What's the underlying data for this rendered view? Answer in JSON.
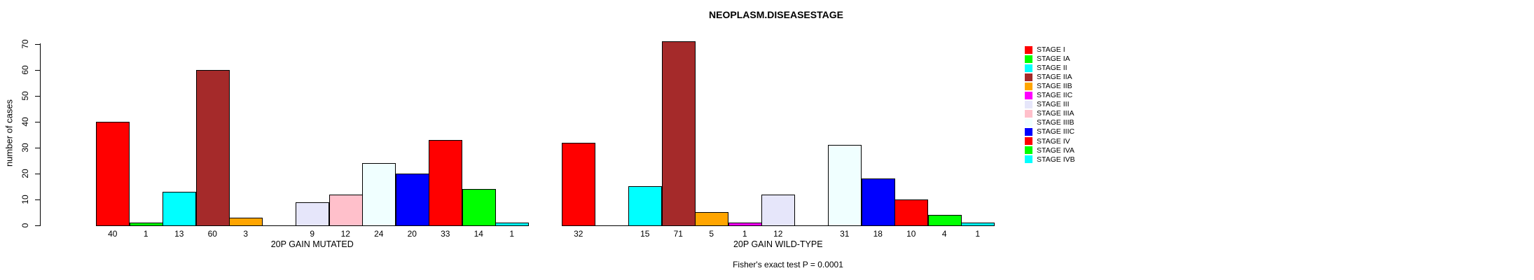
{
  "title": "NEOPLASM.DISEASESTAGE",
  "footer": "Fisher's exact test P = 0.0001",
  "chart_data": {
    "type": "bar",
    "title": "NEOPLASM.DISEASESTAGE",
    "xlabel": "",
    "ylabel": "number of cases",
    "ylim": [
      0,
      70
    ],
    "yticks": [
      0,
      10,
      20,
      30,
      40,
      50,
      60,
      70
    ],
    "grid": false,
    "legend_position": "right",
    "bar_value_labels_shown": true,
    "categories": [
      "STAGE I",
      "STAGE IA",
      "STAGE II",
      "STAGE IIA",
      "STAGE IIB",
      "STAGE IIC",
      "STAGE III",
      "STAGE IIIA",
      "STAGE IIIB",
      "STAGE IIIC",
      "STAGE IV",
      "STAGE IVA",
      "STAGE IVB"
    ],
    "colors": [
      "#FF0000",
      "#00FF00",
      "#00FFFF",
      "#A52A2A",
      "#FFA500",
      "#FF00FF",
      "#E6E6FA",
      "#FFC0CB",
      "#F0FFFF",
      "#0000FF",
      "#FF0000",
      "#00FF00",
      "#00FFFF"
    ],
    "groups": [
      {
        "label": "20P GAIN MUTATED",
        "values": [
          40,
          1,
          13,
          60,
          3,
          0,
          9,
          12,
          24,
          20,
          33,
          14,
          1
        ]
      },
      {
        "label": "20P GAIN WILD-TYPE",
        "values": [
          32,
          0,
          15,
          71,
          5,
          1,
          12,
          0,
          31,
          18,
          10,
          4,
          1
        ]
      }
    ],
    "annotation": "Fisher's exact test P = 0.0001"
  }
}
